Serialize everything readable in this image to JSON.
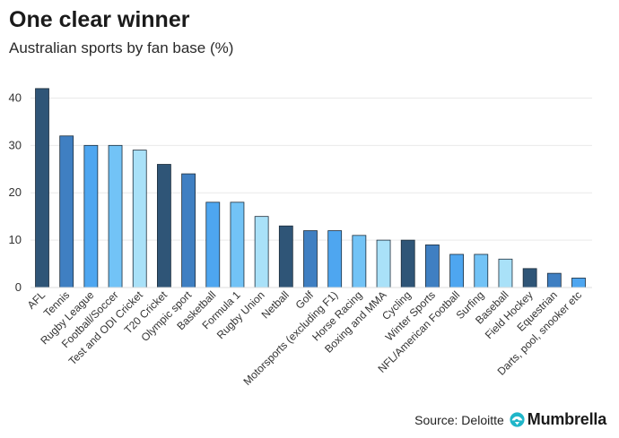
{
  "header": {
    "title": "One clear winner",
    "subtitle": "Australian sports by fan base (%)"
  },
  "footer": {
    "source": "Source: Deloitte",
    "brand": "Mumbrella",
    "brand_icon": "mumbrella-logo-icon"
  },
  "colors": {
    "palette": [
      "#2f5577",
      "#3f7fc2",
      "#4ea6f0",
      "#72c3f6",
      "#a9e1f8"
    ],
    "bar_outline": "#1e2e3c",
    "grid": "#e9e9e9",
    "brand_accent": "#1fb6c9"
  },
  "chart_data": {
    "type": "bar",
    "title": "One clear winner",
    "subtitle": "Australian sports by fan base (%)",
    "xlabel": "",
    "ylabel": "",
    "ylim": [
      0,
      45
    ],
    "yticks": [
      0,
      10,
      20,
      30,
      40
    ],
    "grid": true,
    "categories": [
      "AFL",
      "Tennis",
      "Rugby League",
      "Football/Soccer",
      "Test and ODI Cricket",
      "T20 Cricket",
      "Olympic sport",
      "Basketball",
      "Formula 1",
      "Rugby Union",
      "Netball",
      "Golf",
      "Motorsports (excluding F1)",
      "Horse Racing",
      "Boxing and MMA",
      "Cycling",
      "Winter Sports",
      "NFL/American Football",
      "Surfing",
      "Baseball",
      "Field Hockey",
      "Equestrian",
      "Darts, pool, snooker etc"
    ],
    "values": [
      42,
      32,
      30,
      30,
      29,
      26,
      24,
      18,
      18,
      15,
      13,
      12,
      12,
      11,
      10,
      10,
      9,
      7,
      7,
      6,
      4,
      3,
      2
    ]
  }
}
